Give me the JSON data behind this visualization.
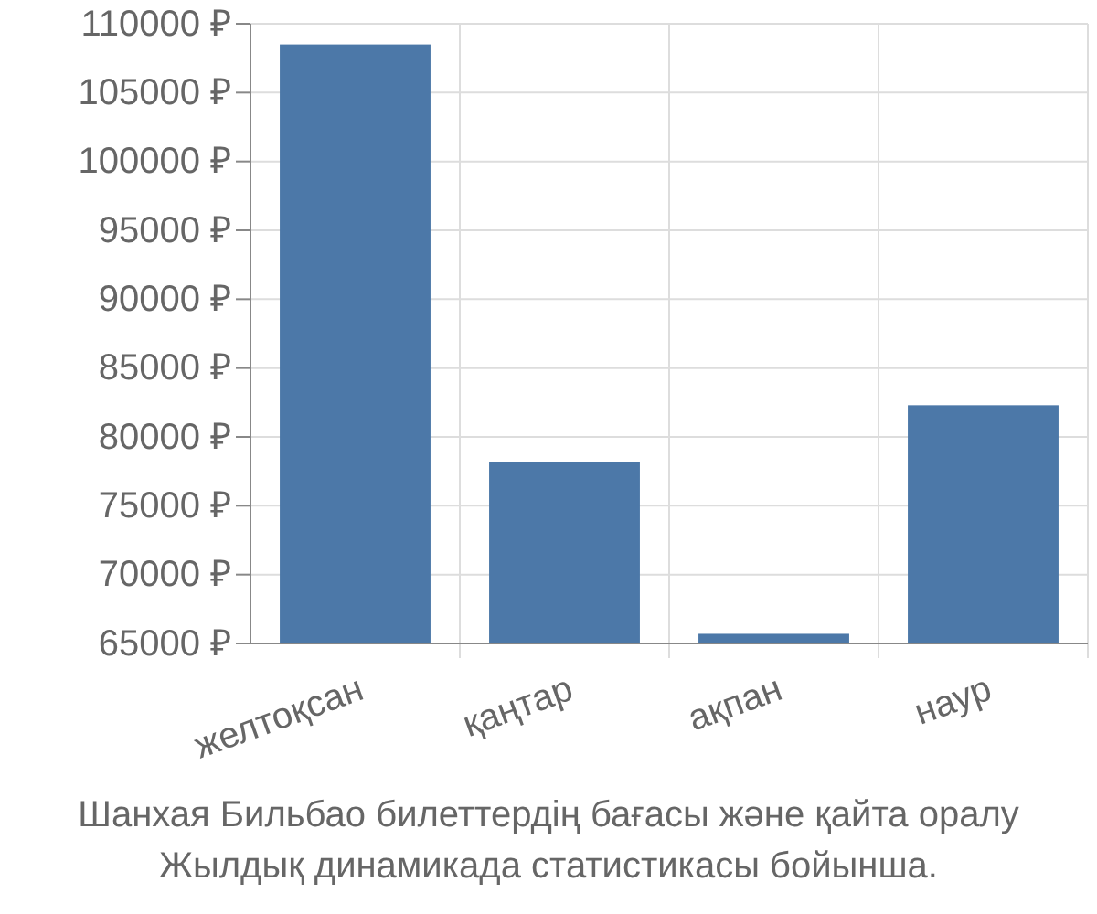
{
  "chart_data": {
    "type": "bar",
    "categories": [
      "желтоқсан",
      "қаңтар",
      "ақпан",
      "наур"
    ],
    "values": [
      108500,
      78200,
      65700,
      82300
    ],
    "color": "#4c78a8",
    "ylim": [
      65000,
      110000
    ],
    "yticks": [
      {
        "value": 65000,
        "label": "65000 ₽"
      },
      {
        "value": 70000,
        "label": "70000 ₽"
      },
      {
        "value": 75000,
        "label": "75000 ₽"
      },
      {
        "value": 80000,
        "label": "80000 ₽"
      },
      {
        "value": 85000,
        "label": "85000 ₽"
      },
      {
        "value": 90000,
        "label": "90000 ₽"
      },
      {
        "value": 95000,
        "label": "95000 ₽"
      },
      {
        "value": 100000,
        "label": "100000 ₽"
      },
      {
        "value": 105000,
        "label": "105000 ₽"
      },
      {
        "value": 110000,
        "label": "110000 ₽"
      }
    ],
    "grid": true,
    "annotations": [
      "Шанхая Бильбао билеттердің бағасы және қайта оралу",
      "Жылдық динамикада статистикасы бойынша."
    ]
  }
}
